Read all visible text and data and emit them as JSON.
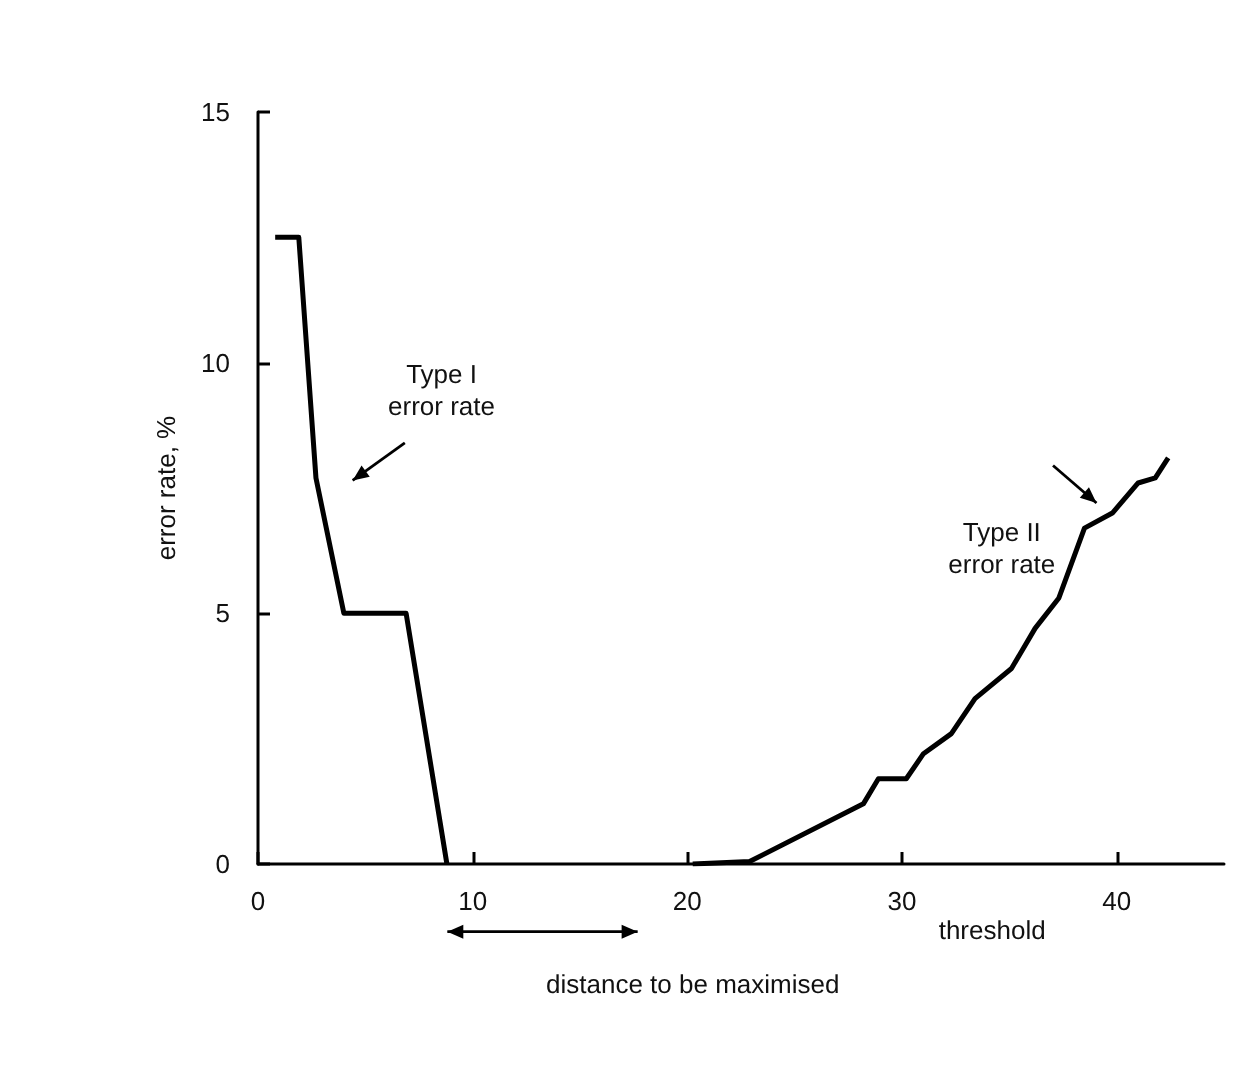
{
  "chart_data": {
    "type": "line",
    "xlabel": "threshold",
    "ylabel": "error rate, %",
    "xlim": [
      0,
      45
    ],
    "xticks": [
      0,
      10,
      20,
      30,
      40
    ],
    "ylim": [
      0,
      15
    ],
    "yticks": [
      0,
      5,
      10,
      15
    ],
    "grid": false,
    "marker": "none",
    "line_style": "solid",
    "series": [
      {
        "color": "#000000",
        "x": [
          0.8,
          1.9,
          2.7,
          4.0,
          6.9,
          8.8
        ],
        "values": [
          12.5,
          12.5,
          7.7,
          5,
          5,
          0
        ]
      },
      {
        "color": "#000000",
        "x": [
          20.25,
          22.9,
          28.2,
          28.9,
          30.2,
          31.0,
          32.3,
          33.4,
          35.1,
          36.2,
          37.3,
          38.5,
          39.8,
          41.0,
          41.8,
          42.4
        ],
        "values": [
          0,
          0.05,
          1.2,
          1.7,
          1.7,
          2.2,
          2.6,
          3.3,
          3.9,
          4.7,
          5.3,
          6.7,
          7.0,
          7.6,
          7.7,
          8.1
        ]
      }
    ],
    "annotations": [
      "Type I\nerror rate",
      "Type II\nerror rate",
      "distance to be maximised"
    ]
  }
}
